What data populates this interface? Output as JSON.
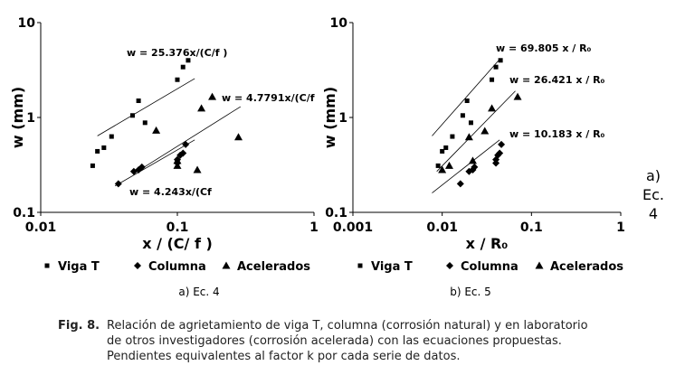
{
  "chart_data": [
    {
      "type": "scatter",
      "log_x": true,
      "log_y": true,
      "ylabel": "w (mm)",
      "xlabel": "x / (C/ f  )",
      "subcaption": "a) Ec. 4",
      "xlim": [
        0.01,
        1
      ],
      "xticks": [
        0.01,
        0.1,
        1
      ],
      "ylim": [
        0.1,
        10
      ],
      "yticks": [
        0.1,
        1,
        10
      ],
      "series": [
        {
          "name": "Viga T",
          "marker": "square",
          "color": "#000000",
          "x": [
            0.024,
            0.026,
            0.029,
            0.033,
            0.047,
            0.052,
            0.058,
            0.1,
            0.11,
            0.12
          ],
          "values": [
            0.31,
            0.44,
            0.48,
            0.63,
            1.05,
            1.5,
            0.88,
            2.5,
            3.4,
            4.0
          ]
        },
        {
          "name": "Columna",
          "marker": "diamond",
          "color": "#000000",
          "x": [
            0.037,
            0.048,
            0.052,
            0.055,
            0.1,
            0.1,
            0.105,
            0.11,
            0.115
          ],
          "values": [
            0.2,
            0.27,
            0.28,
            0.3,
            0.33,
            0.36,
            0.4,
            0.42,
            0.52
          ]
        },
        {
          "name": "Acelerados",
          "marker": "triangle",
          "color": "#000000",
          "x": [
            0.07,
            0.1,
            0.1,
            0.14,
            0.15,
            0.18,
            0.28
          ],
          "values": [
            0.73,
            0.31,
            0.35,
            0.28,
            1.25,
            1.65,
            0.62
          ]
        }
      ],
      "fit_lines": [
        {
          "label": "w = 25.376x/(C/f  )",
          "x": [
            0.026,
            0.134
          ],
          "y": [
            0.64,
            2.57
          ]
        },
        {
          "label": "w = 4.7791x/(C/f",
          "x": [
            0.053,
            0.29
          ],
          "y": [
            0.28,
            1.3
          ]
        },
        {
          "label": "w = 4.243x/(Cf",
          "x": [
            0.035,
            0.134
          ],
          "y": [
            0.19,
            0.58
          ]
        }
      ]
    },
    {
      "type": "scatter",
      "log_x": true,
      "log_y": true,
      "ylabel": "w (mm)",
      "xlabel": "x / R₀",
      "subcaption": "b) Ec. 5",
      "xlim": [
        0.001,
        1
      ],
      "xticks": [
        0.001,
        0.01,
        0.1,
        1
      ],
      "ylim": [
        0.1,
        10
      ],
      "yticks": [
        0.1,
        1,
        10
      ],
      "series": [
        {
          "name": "Viga T",
          "marker": "square",
          "color": "#000000",
          "x": [
            0.009,
            0.01,
            0.011,
            0.013,
            0.017,
            0.019,
            0.021,
            0.036,
            0.04,
            0.045
          ],
          "values": [
            0.31,
            0.44,
            0.48,
            0.63,
            1.05,
            1.5,
            0.88,
            2.5,
            3.4,
            4.0
          ]
        },
        {
          "name": "Columna",
          "marker": "diamond",
          "color": "#000000",
          "x": [
            0.016,
            0.02,
            0.022,
            0.023,
            0.04,
            0.04,
            0.042,
            0.044,
            0.046
          ],
          "values": [
            0.2,
            0.27,
            0.28,
            0.3,
            0.33,
            0.36,
            0.4,
            0.42,
            0.52
          ]
        },
        {
          "name": "Acelerados",
          "marker": "triangle",
          "color": "#000000",
          "x": [
            0.01,
            0.012,
            0.02,
            0.022,
            0.03,
            0.036,
            0.07
          ],
          "values": [
            0.28,
            0.31,
            0.62,
            0.35,
            0.72,
            1.25,
            1.65
          ]
        }
      ],
      "fit_lines": [
        {
          "label": "w = 69.805 x / R₀",
          "x": [
            0.0077,
            0.044
          ],
          "y": [
            0.64,
            4.1
          ]
        },
        {
          "label": "w = 26.421 x / R₀",
          "x": [
            0.0087,
            0.066
          ],
          "y": [
            0.27,
            1.9
          ]
        },
        {
          "label": "w = 10.183 x / R₀",
          "x": [
            0.0077,
            0.044
          ],
          "y": [
            0.16,
            0.58
          ]
        }
      ]
    }
  ],
  "side_label": [
    "a)",
    "Ec.",
    "4"
  ],
  "figure_caption": {
    "label": "Fig. 8.",
    "lines": [
      "Relación de agrietamiento de viga T, columna (corrosión natural) y en laboratorio",
      "de otros investigadores (corrosión acelerada) con las ecuaciones propuestas.",
      "Pendientes equivalentes al factor k por cada serie de datos."
    ]
  }
}
